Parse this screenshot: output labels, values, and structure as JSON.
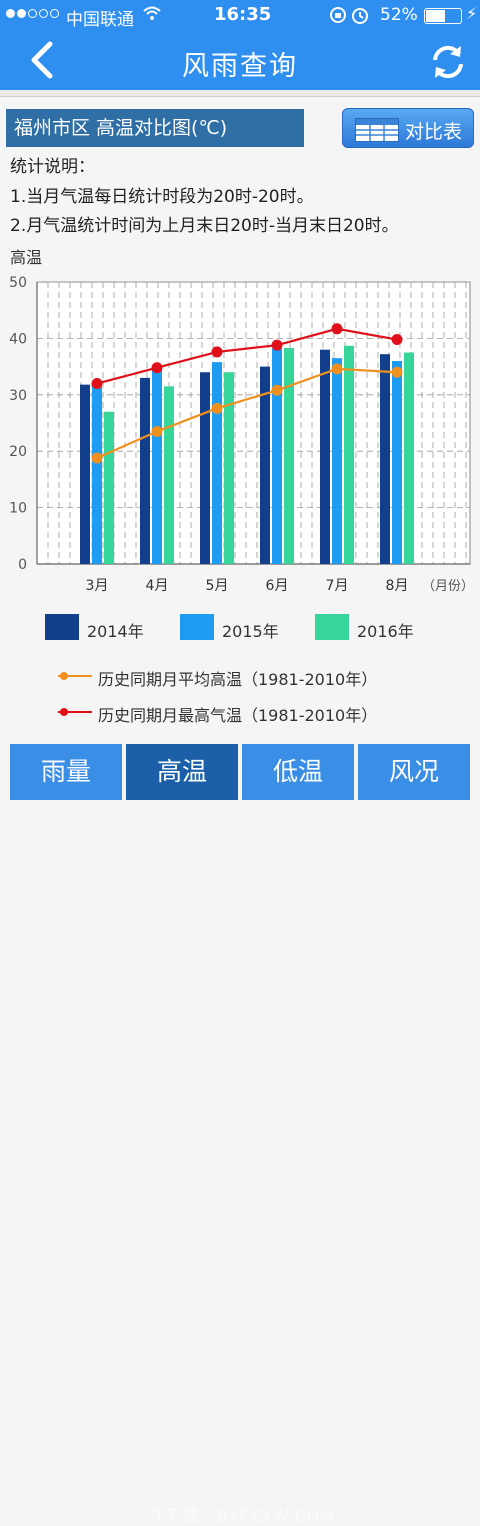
{
  "status": {
    "carrier": "中国联通",
    "time": "16:35",
    "battery": "52%"
  },
  "nav": {
    "title": "风雨查询",
    "back_icon": "back-chevron-icon",
    "refresh_icon": "refresh-icon"
  },
  "header": {
    "city_title": "福州市区 高温对比图(℃)",
    "compare_button": "对比表"
  },
  "description": {
    "heading": "统计说明：",
    "line1": "1.当月气温每日统计时段为20时-20时。",
    "line2": "2.月气温统计时间为上月末日20时-当月末日20时。"
  },
  "chart_data": {
    "type": "bar",
    "ylabel": "高温",
    "xunit": "（月份）",
    "ylim": [
      0,
      50
    ],
    "yticks": [
      0,
      10,
      20,
      30,
      40,
      50
    ],
    "categories": [
      "3月",
      "4月",
      "5月",
      "6月",
      "7月",
      "8月"
    ],
    "series": [
      {
        "name": "2014年",
        "kind": "bar",
        "color": "#123f8c",
        "values": [
          31.8,
          33.0,
          34.0,
          35.0,
          38.0,
          37.2
        ]
      },
      {
        "name": "2015年",
        "kind": "bar",
        "color": "#1e9cf2",
        "values": [
          31.5,
          34.5,
          35.8,
          38.2,
          36.5,
          36.0
        ]
      },
      {
        "name": "2016年",
        "kind": "bar",
        "color": "#36d69a",
        "values": [
          27.0,
          31.5,
          34.0,
          38.3,
          38.7,
          37.5
        ]
      },
      {
        "name": "历史同期月平均高温（1981-2010年）",
        "kind": "line",
        "color": "#f0901e",
        "values": [
          18.8,
          23.5,
          27.6,
          30.8,
          34.6,
          34.0
        ]
      },
      {
        "name": "历史同期月最高气温（1981-2010年）",
        "kind": "line",
        "color": "#e0101a",
        "values": [
          32.0,
          34.8,
          37.6,
          38.8,
          41.7,
          39.8
        ]
      }
    ]
  },
  "tabs": [
    {
      "label": "雨量",
      "active": false
    },
    {
      "label": "高温",
      "active": true
    },
    {
      "label": "低温",
      "active": false
    },
    {
      "label": "风况",
      "active": false
    }
  ],
  "watermark": "飞下载 · BYFZXW.COM"
}
